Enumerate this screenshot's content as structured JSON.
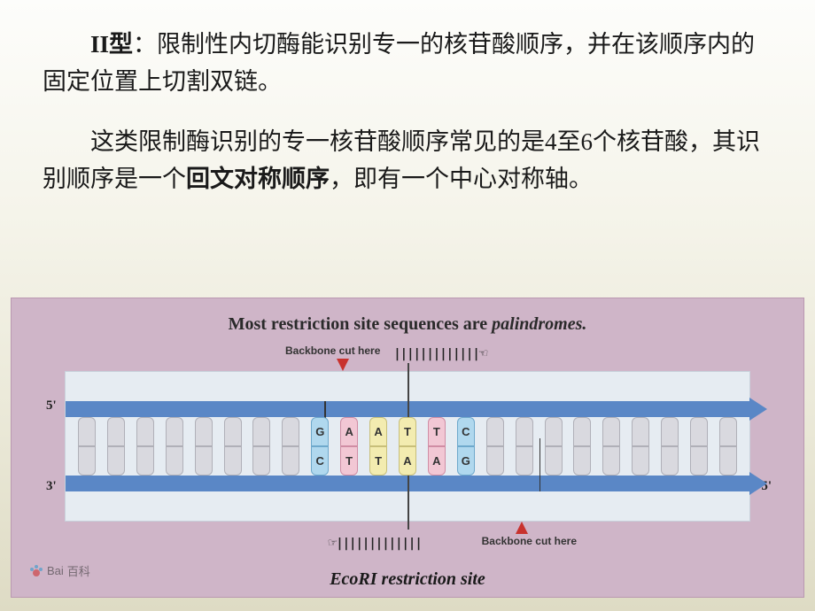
{
  "text": {
    "p1_a": "II型",
    "p1_b": "：限制性内切酶能识别专一的核苷酸顺序，并在该顺序内的固定位置上切割双链。",
    "p2_a": "这类限制酶识别的专一核苷酸顺序常见的是4至6个核苷酸，其识别顺序是一个",
    "p2_b": "回文对称顺序",
    "p2_c": "，即有一个中心对称轴。"
  },
  "figure": {
    "title_plain": "Most restriction site sequences are ",
    "title_ital": "palindromes.",
    "backbone_label": "Backbone\ncut here",
    "end5": "5'",
    "end3": "3'",
    "caption_eco": "Eco",
    "caption_rest": "RI restriction site",
    "logo_text": "百科",
    "logo_prefix": "Bai",
    "barcode": "|||||||||||||",
    "colors": {
      "frame_bg": "#cfb5c8",
      "panel_bg": "#e6ecf2",
      "strand": "#5a87c6",
      "red": "#c8322e",
      "base_gray": "#d9d9df",
      "base_blue": "#b0d8ee",
      "base_pink": "#f2c7d4",
      "base_yellow": "#f3ecb0"
    },
    "sequence": {
      "left_blanks": 8,
      "right_blanks": 9,
      "site_top": [
        "G",
        "A",
        "A",
        "T",
        "T",
        "C"
      ],
      "site_bottom": [
        "C",
        "T",
        "T",
        "A",
        "A",
        "G"
      ],
      "site_colors": [
        "blue",
        "pink",
        "yellow",
        "yellow",
        "pink",
        "blue"
      ]
    }
  }
}
